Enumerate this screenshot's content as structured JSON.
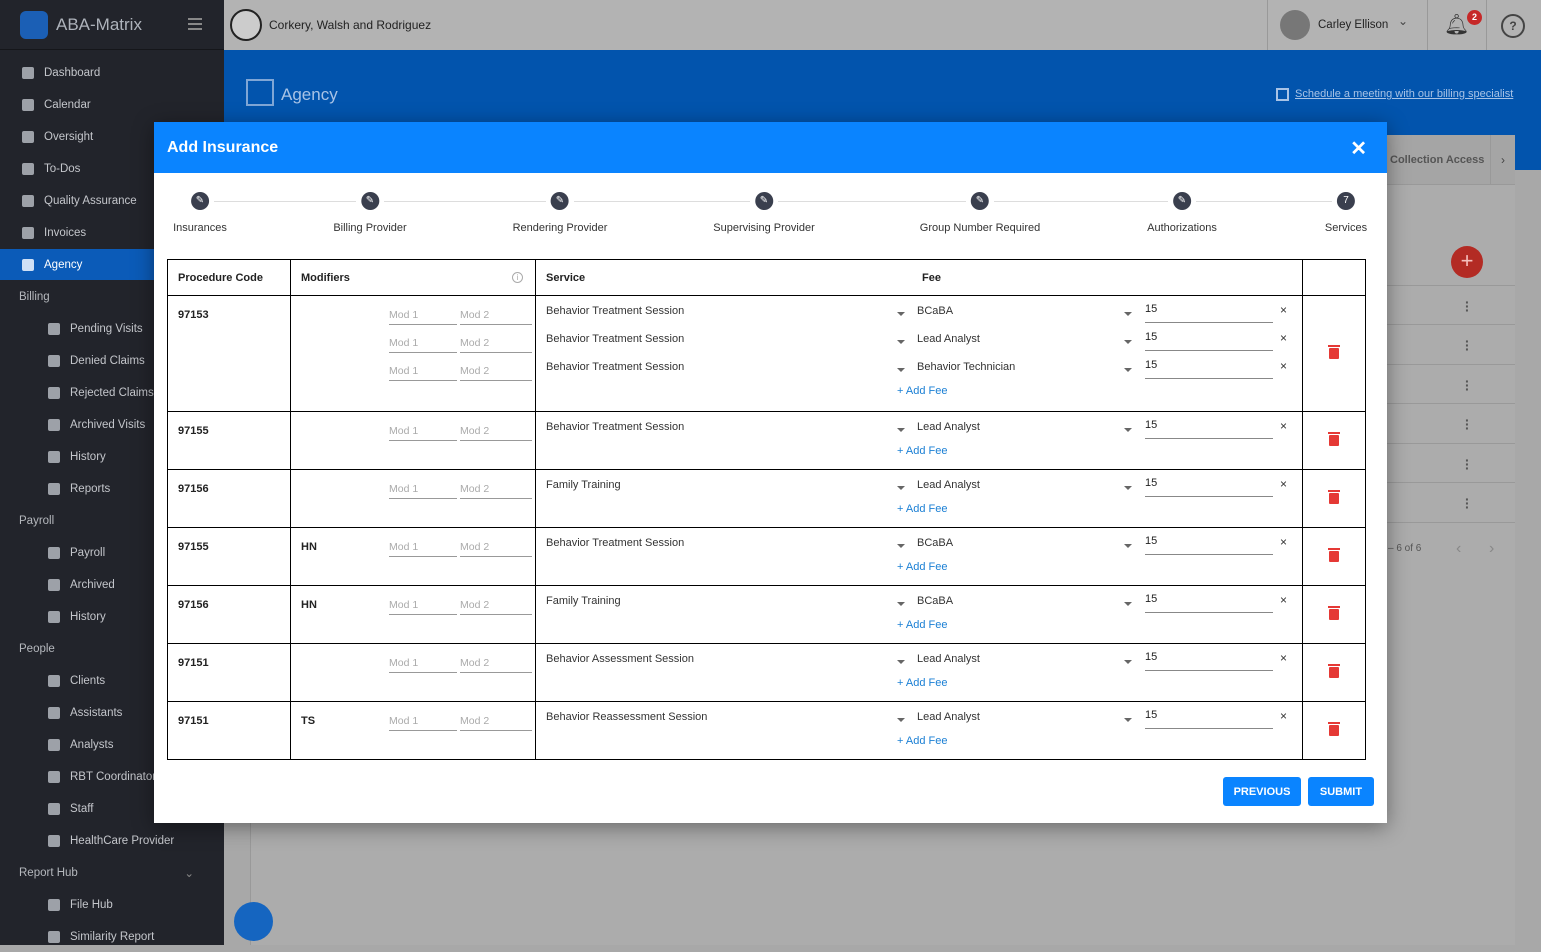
{
  "app": {
    "name": "ABA-Matrix",
    "org": "Corkery, Walsh and Rodriguez",
    "user": "Carley Ellison",
    "notifications": "2"
  },
  "sidebar": [
    {
      "label": "Dashboard",
      "type": "top"
    },
    {
      "label": "Calendar",
      "type": "top"
    },
    {
      "label": "Oversight",
      "type": "top"
    },
    {
      "label": "To-Dos",
      "type": "top"
    },
    {
      "label": "Quality Assurance",
      "type": "top"
    },
    {
      "label": "Invoices",
      "type": "top"
    },
    {
      "label": "Agency",
      "type": "top",
      "active": true
    },
    {
      "label": "Billing",
      "type": "sec"
    },
    {
      "label": "Pending Visits",
      "type": "sub"
    },
    {
      "label": "Denied Claims",
      "type": "sub"
    },
    {
      "label": "Rejected Claims",
      "type": "sub"
    },
    {
      "label": "Archived Visits",
      "type": "sub"
    },
    {
      "label": "History",
      "type": "sub"
    },
    {
      "label": "Reports",
      "type": "sub"
    },
    {
      "label": "Payroll",
      "type": "sec"
    },
    {
      "label": "Payroll",
      "type": "sub"
    },
    {
      "label": "Archived",
      "type": "sub"
    },
    {
      "label": "History",
      "type": "sub"
    },
    {
      "label": "People",
      "type": "sec"
    },
    {
      "label": "Clients",
      "type": "sub"
    },
    {
      "label": "Assistants",
      "type": "sub"
    },
    {
      "label": "Analysts",
      "type": "sub"
    },
    {
      "label": "RBT Coordinators",
      "type": "sub"
    },
    {
      "label": "Staff",
      "type": "sub"
    },
    {
      "label": "HealthCare Provider",
      "type": "sub"
    },
    {
      "label": "Report Hub",
      "type": "sec",
      "chevron": true
    },
    {
      "label": "File Hub",
      "type": "sub"
    },
    {
      "label": "Similarity Report",
      "type": "sub"
    }
  ],
  "page": {
    "title": "Agency",
    "schedule_link": "Schedule a meeting with our billing specialist",
    "tab_visible": "Collection Access",
    "pagination": "– 6 of 6"
  },
  "modal": {
    "title": "Add Insurance",
    "steps": [
      {
        "label": "Insurances",
        "mark": "✎"
      },
      {
        "label": "Billing Provider",
        "mark": "✎"
      },
      {
        "label": "Rendering Provider",
        "mark": "✎"
      },
      {
        "label": "Supervising Provider",
        "mark": "✎"
      },
      {
        "label": "Group Number Required",
        "mark": "✎"
      },
      {
        "label": "Authorizations",
        "mark": "✎"
      },
      {
        "label": "Services",
        "mark": "7"
      }
    ],
    "headers": {
      "code": "Procedure Code",
      "modifiers": "Modifiers",
      "service": "Service",
      "fee": "Fee"
    },
    "mod1_placeholder": "Mod 1",
    "mod2_placeholder": "Mod 2",
    "add_fee": "+ Add Fee",
    "rows": [
      {
        "code": "97153",
        "modifier": "",
        "lines": [
          {
            "service": "Behavior Treatment Session",
            "role": "BCaBA",
            "fee": "15"
          },
          {
            "service": "Behavior Treatment Session",
            "role": "Lead Analyst",
            "fee": "15"
          },
          {
            "service": "Behavior Treatment Session",
            "role": "Behavior Technician",
            "fee": "15"
          }
        ]
      },
      {
        "code": "97155",
        "modifier": "",
        "lines": [
          {
            "service": "Behavior Treatment Session",
            "role": "Lead Analyst",
            "fee": "15"
          }
        ]
      },
      {
        "code": "97156",
        "modifier": "",
        "lines": [
          {
            "service": "Family Training",
            "role": "Lead Analyst",
            "fee": "15"
          }
        ]
      },
      {
        "code": "97155",
        "modifier": "HN",
        "lines": [
          {
            "service": "Behavior Treatment Session",
            "role": "BCaBA",
            "fee": "15"
          }
        ]
      },
      {
        "code": "97156",
        "modifier": "HN",
        "lines": [
          {
            "service": "Family Training",
            "role": "BCaBA",
            "fee": "15"
          }
        ]
      },
      {
        "code": "97151",
        "modifier": "",
        "lines": [
          {
            "service": "Behavior Assessment Session",
            "role": "Lead Analyst",
            "fee": "15"
          }
        ]
      },
      {
        "code": "97151",
        "modifier": "TS",
        "lines": [
          {
            "service": "Behavior Reassessment Session",
            "role": "Lead Analyst",
            "fee": "15"
          }
        ]
      }
    ],
    "previous": "PREVIOUS",
    "submit": "SUBMIT"
  }
}
